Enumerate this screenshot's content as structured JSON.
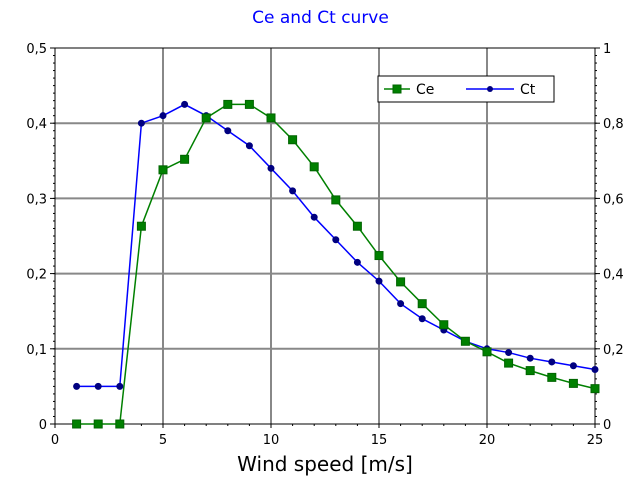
{
  "chart_data": {
    "type": "line",
    "title": "Ce and Ct curve",
    "xlabel": "Wind speed [m/s]",
    "ylabel": "",
    "y2label": "",
    "xlim": [
      0,
      25
    ],
    "ylim": [
      0,
      0.5
    ],
    "y2lim": [
      0,
      1
    ],
    "x_ticks": [
      0,
      5,
      10,
      15,
      20,
      25
    ],
    "x_tick_labels": [
      "0",
      "5",
      "10",
      "15",
      "20",
      "25"
    ],
    "y_ticks": [
      0,
      0.1,
      0.2,
      0.3,
      0.4,
      0.5
    ],
    "y_tick_labels": [
      "0",
      "0,1",
      "0,2",
      "0,3",
      "0,4",
      "0,5"
    ],
    "y2_ticks": [
      0,
      0.2,
      0.4,
      0.6,
      0.8,
      1
    ],
    "y2_tick_labels": [
      "0",
      "0,2",
      "0,4",
      "0,6",
      "0,8",
      "1"
    ],
    "grid": true,
    "legend_position": "top-right",
    "colors": {
      "title": "#0000ff",
      "Ce": "#008000",
      "Ce_marker": "#006400",
      "Ct": "#0000ff",
      "Ct_marker": "#000080",
      "grid": "#888888"
    },
    "series": [
      {
        "name": "Ce",
        "axis": "left",
        "marker": "square",
        "x": [
          1,
          2,
          3,
          4,
          5,
          6,
          7,
          8,
          9,
          10,
          11,
          12,
          13,
          14,
          15,
          16,
          17,
          18,
          19,
          20,
          21,
          22,
          23,
          24,
          25
        ],
        "values": [
          0,
          0,
          0,
          0.263,
          0.338,
          0.352,
          0.407,
          0.425,
          0.425,
          0.407,
          0.378,
          0.342,
          0.298,
          0.263,
          0.224,
          0.189,
          0.16,
          0.132,
          0.11,
          0.096,
          0.081,
          0.071,
          0.062,
          0.054,
          0.047
        ]
      },
      {
        "name": "Ct",
        "axis": "right",
        "marker": "circle",
        "x": [
          1,
          2,
          3,
          4,
          5,
          6,
          7,
          8,
          9,
          10,
          11,
          12,
          13,
          14,
          15,
          16,
          17,
          18,
          19,
          20,
          21,
          22,
          23,
          24,
          25
        ],
        "values": [
          0.1,
          0.1,
          0.1,
          0.8,
          0.82,
          0.85,
          0.82,
          0.78,
          0.74,
          0.68,
          0.62,
          0.55,
          0.49,
          0.43,
          0.38,
          0.32,
          0.28,
          0.25,
          0.22,
          0.2,
          0.19,
          0.175,
          0.165,
          0.155,
          0.145
        ]
      }
    ]
  }
}
